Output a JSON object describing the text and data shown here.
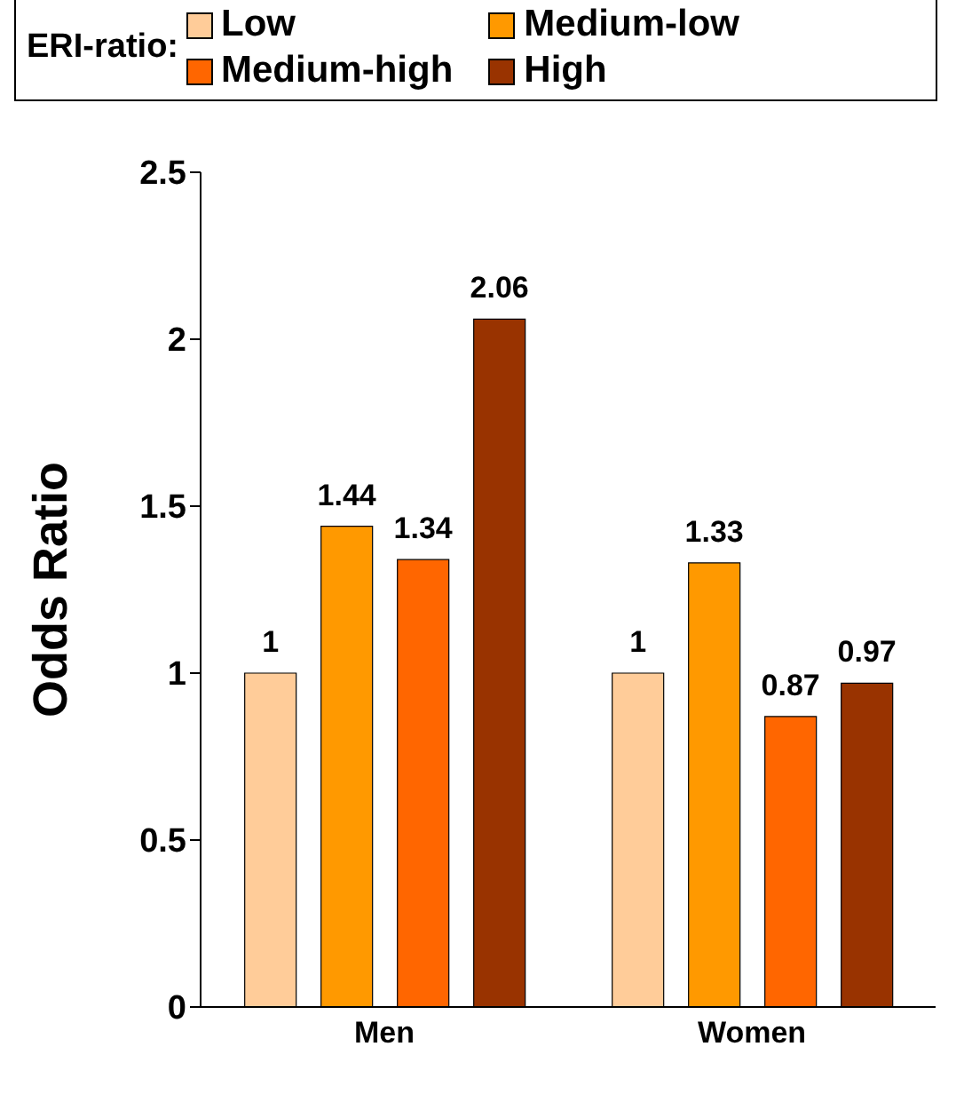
{
  "chart_data": {
    "type": "bar",
    "ylabel": "Odds Ratio",
    "legend_title": "ERI-ratio:",
    "categories": [
      "Men",
      "Women"
    ],
    "series": [
      {
        "name": "Low",
        "color": "#ffcc99",
        "values": [
          1,
          1
        ]
      },
      {
        "name": "Medium-low",
        "color": "#ff9900",
        "values": [
          1.44,
          1.33
        ]
      },
      {
        "name": "Medium-high",
        "color": "#ff6600",
        "values": [
          1.34,
          0.87
        ]
      },
      {
        "name": "High",
        "color": "#993300",
        "values": [
          2.06,
          0.97
        ]
      }
    ],
    "ylim": [
      0,
      2.5
    ],
    "yticks": [
      0,
      0.5,
      1,
      1.5,
      2,
      2.5
    ],
    "grid": false,
    "legend": "top",
    "data_labels": true
  }
}
